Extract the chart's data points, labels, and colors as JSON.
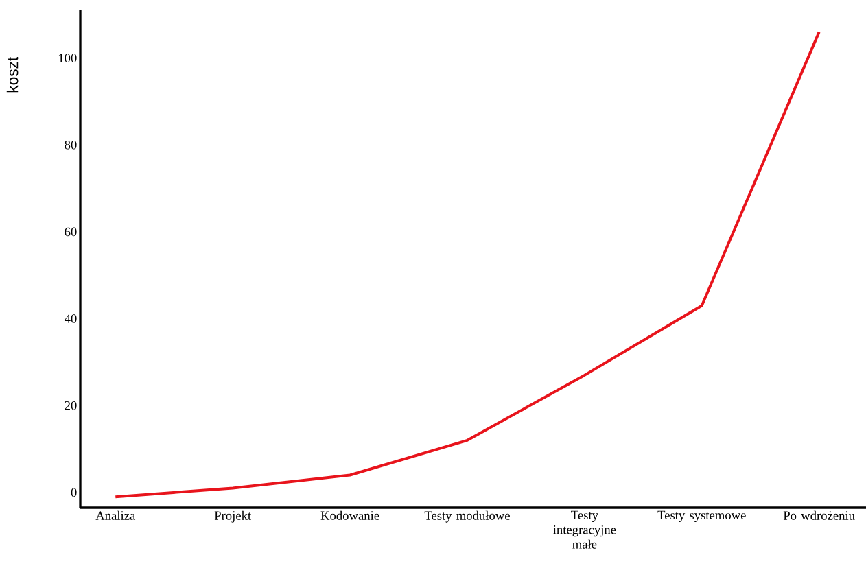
{
  "chart_data": {
    "type": "line",
    "ylabel": "koszt",
    "categories": [
      "Analiza",
      "Projekt",
      "Kodowanie",
      "Testy modułowe",
      "Testy integracyjne małe",
      "Testy systemowe",
      "Po wdrożeniu"
    ],
    "series": [
      {
        "color": "#e8141c",
        "values": [
          -1,
          1,
          4,
          12,
          27,
          43,
          106
        ]
      }
    ],
    "ylim": [
      -3.5,
      111
    ],
    "yticks": [
      0,
      20,
      40,
      60,
      80,
      100
    ],
    "grid": false,
    "marker": "none",
    "line_style": "solid"
  }
}
